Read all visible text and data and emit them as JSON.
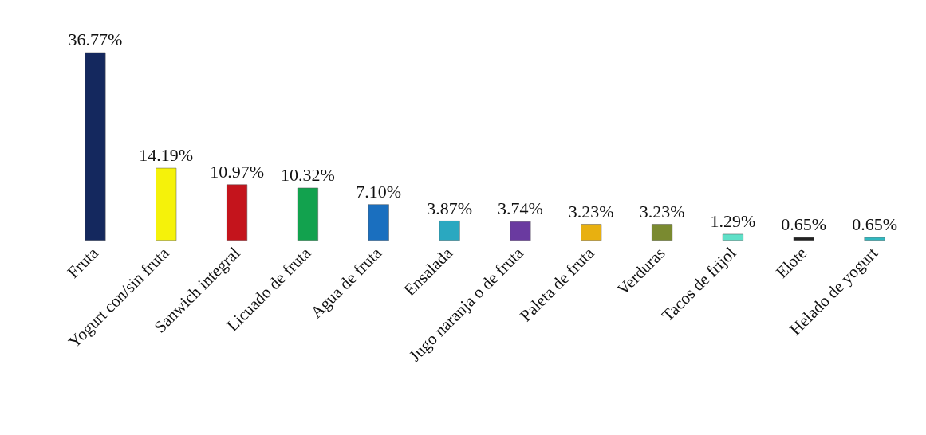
{
  "chart_data": {
    "type": "bar",
    "categories": [
      "Fruta",
      "Yogurt con/sin fruta",
      "Sanwich integral",
      "Licuado de fruta",
      "Agua de fruta",
      "Ensalada",
      "Jugo naranja o de fruta",
      "Paleta de fruta",
      "Verduras",
      "Tacos de frijol",
      "Elote",
      "Helado de yogurt"
    ],
    "values": [
      36.77,
      14.19,
      10.97,
      10.32,
      7.1,
      3.87,
      3.74,
      3.23,
      3.23,
      1.29,
      0.65,
      0.65
    ],
    "value_labels": [
      "36.77%",
      "14.19%",
      "10.97%",
      "10.32%",
      "7.10%",
      "3.87%",
      "3.74%",
      "3.23%",
      "3.23%",
      "1.29%",
      "0.65%",
      "0.65%"
    ],
    "colors": [
      "#14285e",
      "#f5f20a",
      "#c4141c",
      "#12a24e",
      "#1a6fbf",
      "#2aa8c0",
      "#6a3aa0",
      "#e8b010",
      "#7a8a30",
      "#5fe0c8",
      "#222222",
      "#30b8c0"
    ]
  }
}
